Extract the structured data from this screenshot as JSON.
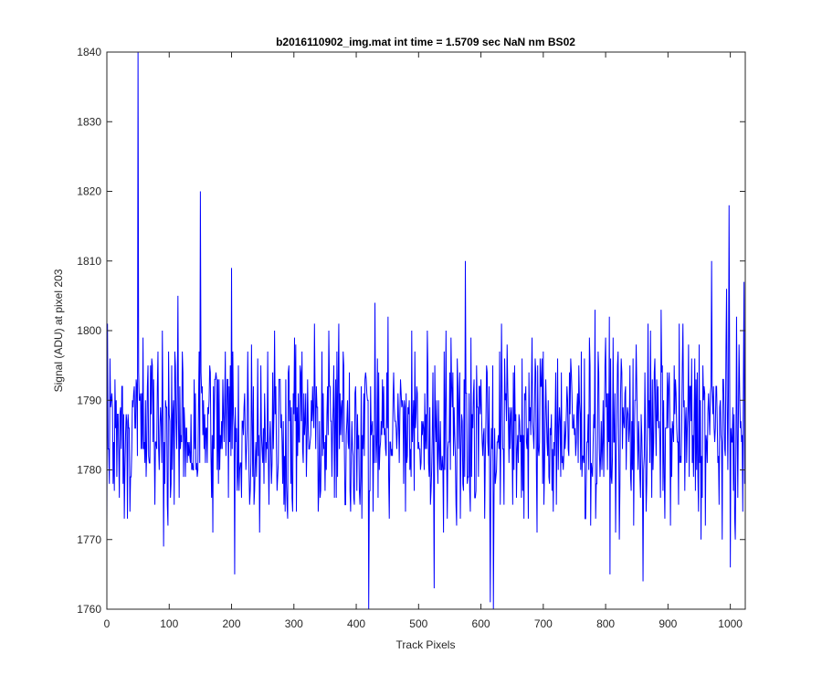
{
  "chart_data": {
    "type": "line",
    "title": "b2016110902_img.mat int time = 1.5709 sec  NaN nm BS02",
    "xlabel": "Track Pixels",
    "ylabel": "Signal (ADU) at pixel 203",
    "xlim": [
      0,
      1024
    ],
    "ylim": [
      1760,
      1840
    ],
    "xticks": [
      0,
      100,
      200,
      300,
      400,
      500,
      600,
      700,
      800,
      900,
      1000
    ],
    "yticks": [
      1760,
      1770,
      1780,
      1790,
      1800,
      1810,
      1820,
      1830,
      1840
    ],
    "grid": false,
    "legend": "none",
    "line_color": "#0000ff",
    "axes_color": "#262626",
    "series": [
      {
        "name": "",
        "noise_level": 1786,
        "noise_spread": 7,
        "points_count": 1024,
        "spikes": [
          {
            "x": 50,
            "y": 1840
          },
          {
            "x": 150,
            "y": 1820
          },
          {
            "x": 200,
            "y": 1809
          },
          {
            "x": 205,
            "y": 1765
          },
          {
            "x": 420,
            "y": 1760
          },
          {
            "x": 525,
            "y": 1763
          },
          {
            "x": 575,
            "y": 1810
          },
          {
            "x": 615,
            "y": 1761
          },
          {
            "x": 620,
            "y": 1760
          },
          {
            "x": 860,
            "y": 1764
          },
          {
            "x": 970,
            "y": 1810
          },
          {
            "x": 998,
            "y": 1818
          },
          {
            "x": 1000,
            "y": 1766
          }
        ]
      }
    ]
  }
}
